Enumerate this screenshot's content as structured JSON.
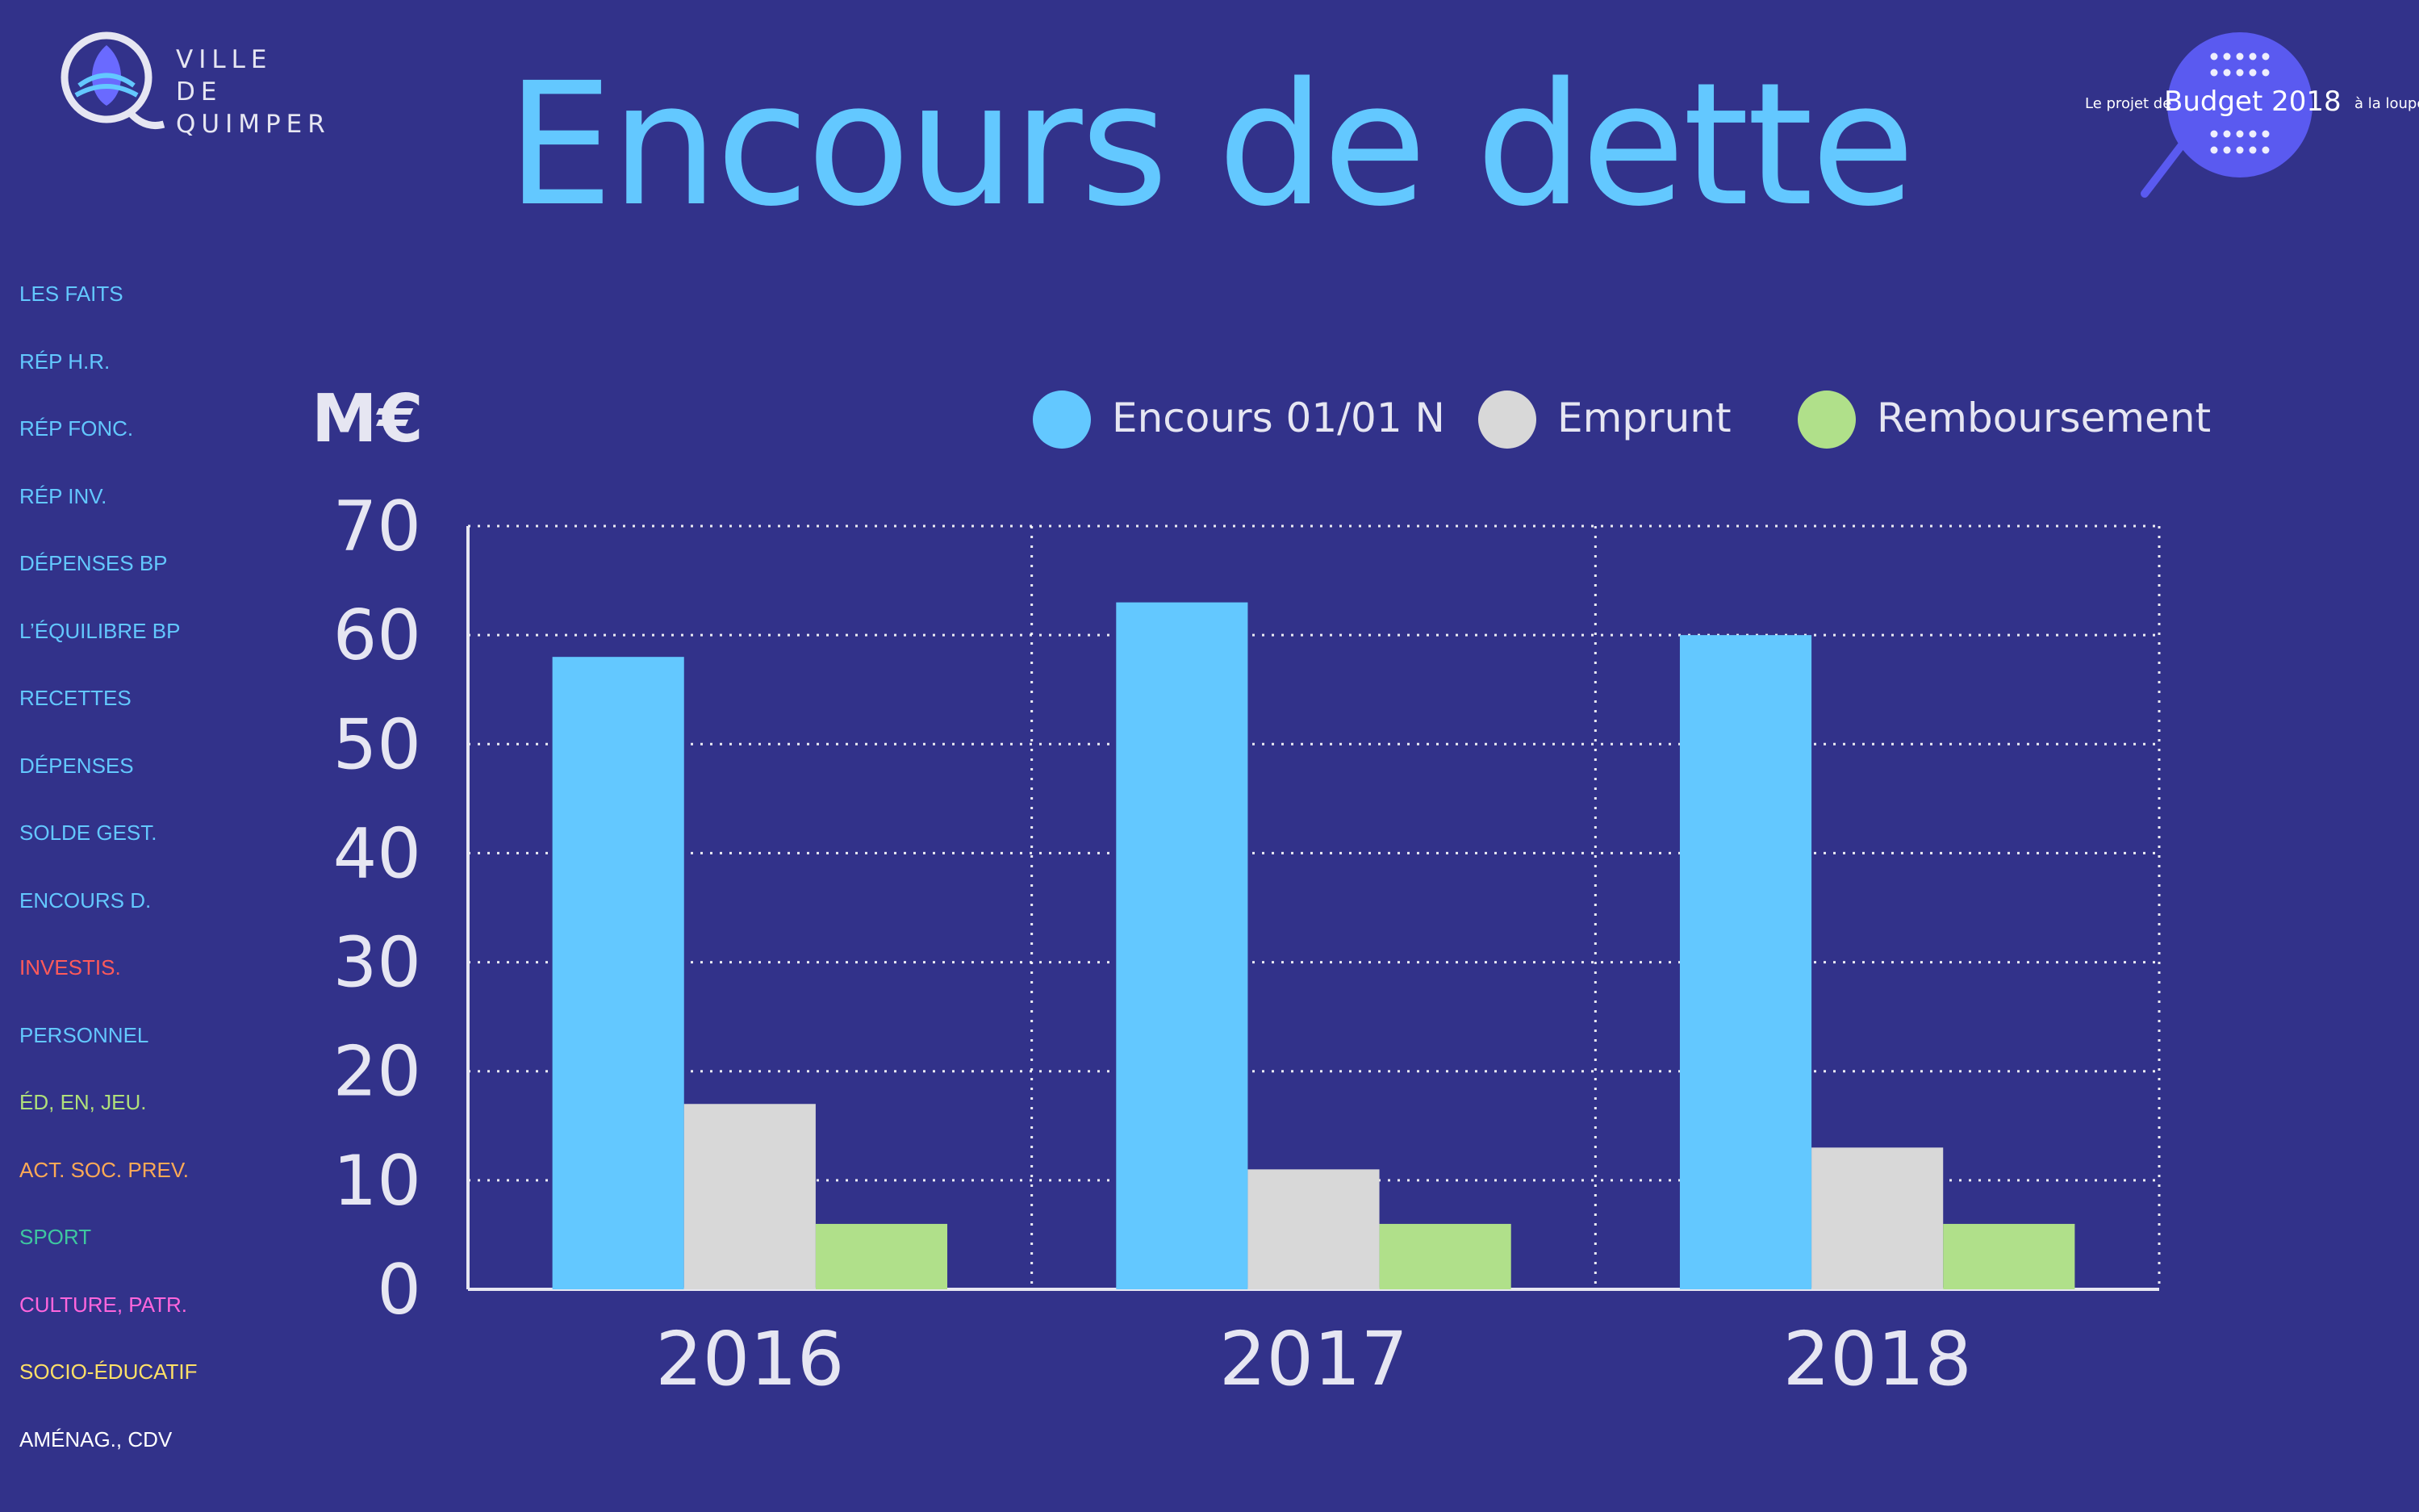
{
  "brand": {
    "line1": "VILLE",
    "line2": "DE QUIMPER"
  },
  "title": "Encours de dette",
  "badge": {
    "pre": "Le projet de",
    "main": "Budget 2018",
    "post": "à la loupe",
    "color": "#5a5af0"
  },
  "nav": [
    {
      "label": "LES FAITS",
      "color": "#63c8ff"
    },
    {
      "label": "RÉP H.R.",
      "color": "#63c8ff"
    },
    {
      "label": "RÉP FONC.",
      "color": "#63c8ff"
    },
    {
      "label": "RÉP INV.",
      "color": "#63c8ff"
    },
    {
      "label": "DÉPENSES BP",
      "color": "#63c8ff"
    },
    {
      "label": "L’ÉQUILIBRE BP",
      "color": "#63c8ff"
    },
    {
      "label": "RECETTES",
      "color": "#63c8ff"
    },
    {
      "label": "DÉPENSES",
      "color": "#63c8ff"
    },
    {
      "label": "SOLDE GEST.",
      "color": "#63c8ff"
    },
    {
      "label": "ENCOURS D.",
      "color": "#63c8ff"
    },
    {
      "label": "INVESTIS.",
      "color": "#ff5a5a"
    },
    {
      "label": "PERSONNEL",
      "color": "#63c8ff"
    },
    {
      "label": "ÉD, EN, JEU.",
      "color": "#b0e07a"
    },
    {
      "label": "ACT. SOC. PREV.",
      "color": "#ffaa55"
    },
    {
      "label": "SPORT",
      "color": "#3ec8a0"
    },
    {
      "label": "CULTURE, PATR.",
      "color": "#ff66dd"
    },
    {
      "label": "SOCIO-ÉDUCATIF",
      "color": "#ffe066"
    },
    {
      "label": "AMÉNAG., CDV",
      "color": "#ffffff"
    }
  ],
  "chart_data": {
    "type": "bar",
    "ylabel": "M€",
    "categories": [
      "2016",
      "2017",
      "2018"
    ],
    "series": [
      {
        "name": "Encours 01/01 N",
        "values": [
          58,
          63,
          60
        ],
        "color": "#63c8ff"
      },
      {
        "name": "Emprunt",
        "values": [
          17,
          11,
          13
        ],
        "color": "#d8d8d8"
      },
      {
        "name": "Remboursement",
        "values": [
          6,
          6,
          6
        ],
        "color": "#b0e08a"
      }
    ],
    "ylim": [
      0,
      70
    ],
    "yticks": [
      0,
      10,
      20,
      30,
      40,
      50,
      60,
      70
    ],
    "grid": true,
    "legend": "top-right"
  }
}
